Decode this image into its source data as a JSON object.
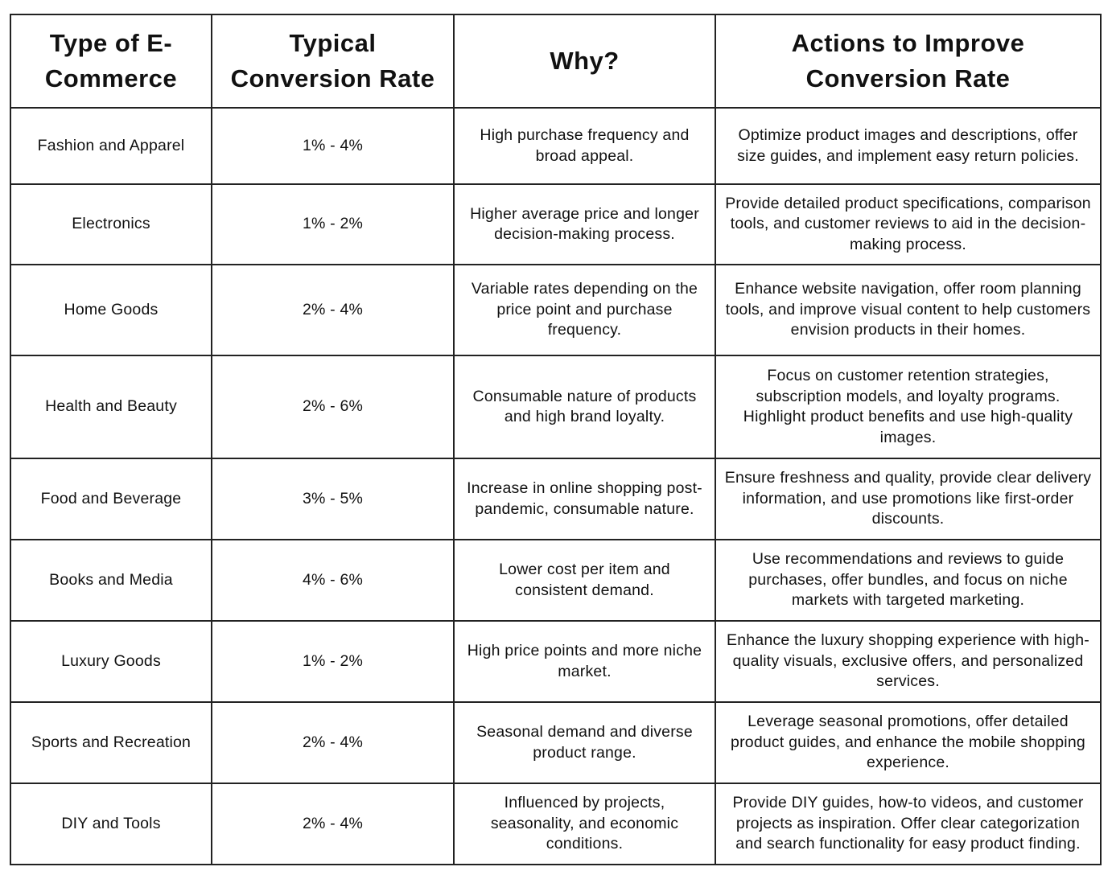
{
  "table": {
    "header": [
      "Type of E-Commerce",
      "Typical Conversion Rate",
      "Why?",
      "Actions to Improve Conversion Rate"
    ],
    "rows": [
      [
        "Fashion and Apparel",
        "1% - 4%",
        "High purchase frequency and broad appeal.",
        "Optimize product images and descriptions, offer size guides, and implement easy return policies."
      ],
      [
        "Electronics",
        "1% - 2%",
        "Higher average price and longer decision-making process.",
        "Provide detailed product specifications, comparison tools, and customer reviews to aid in the decision-making process."
      ],
      [
        "Home Goods",
        "2% - 4%",
        "Variable rates depending on the price point and purchase frequency.",
        "Enhance website navigation, offer room planning tools, and improve visual content to help customers envision products in their homes."
      ],
      [
        "Health and Beauty",
        "2% - 6%",
        "Consumable nature of products and high brand loyalty.",
        "Focus on customer retention strategies, subscription models, and loyalty programs. Highlight product benefits and use high-quality images."
      ],
      [
        "Food and Beverage",
        "3% - 5%",
        "Increase in online shopping post-pandemic, consumable nature.",
        "Ensure freshness and quality, provide clear delivery information, and use promotions like first-order discounts."
      ],
      [
        "Books and Media",
        "4% - 6%",
        "Lower cost per item and consistent demand.",
        "Use recommendations and reviews to guide purchases, offer bundles, and focus on niche markets with targeted marketing."
      ],
      [
        "Luxury Goods",
        "1% - 2%",
        "High price points and more niche market.",
        "Enhance the luxury shopping experience with high-quality visuals, exclusive offers, and personalized services."
      ],
      [
        "Sports and Recreation",
        "2% - 4%",
        "Seasonal demand and diverse product range.",
        "Leverage seasonal promotions, offer detailed product guides, and enhance the mobile shopping experience."
      ],
      [
        "DIY and Tools",
        "2% - 4%",
        "Influenced by projects, seasonality, and economic conditions.",
        "Provide DIY guides, how-to videos, and customer projects as inspiration. Offer clear categorization and search functionality for easy product finding."
      ]
    ]
  }
}
